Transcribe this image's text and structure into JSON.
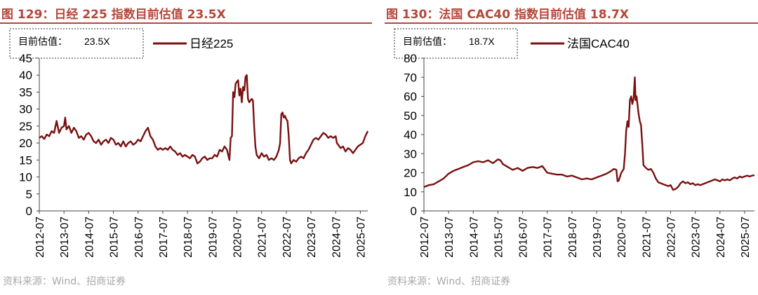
{
  "source_note": "资料来源：Wind、招商证券",
  "colors": {
    "title": "#b5473a",
    "series": "#7a1010",
    "rule": "#b5473a"
  },
  "chart_data": [
    {
      "type": "line",
      "figure_title": "图 129：日经 225 指数目前估值 23.5X",
      "annotation_label": "目前估值：",
      "annotation_value": "23.5X",
      "legend_position": "top",
      "grid": false,
      "ylim": [
        0,
        45
      ],
      "yticks": [
        0,
        5,
        10,
        15,
        20,
        25,
        30,
        35,
        40,
        45
      ],
      "xlim": [
        2012.5,
        2025.8
      ],
      "xticks": [
        "2012-07",
        "2013-07",
        "2014-07",
        "2015-07",
        "2016-07",
        "2017-07",
        "2018-07",
        "2019-07",
        "2020-07",
        "2021-07",
        "2022-07",
        "2023-07",
        "2024-07",
        "2025-07"
      ],
      "series": [
        {
          "name": "日经225",
          "points": [
            [
              2012.5,
              21.5
            ],
            [
              2012.6,
              22.0
            ],
            [
              2012.7,
              21.2
            ],
            [
              2012.8,
              22.5
            ],
            [
              2012.9,
              22.0
            ],
            [
              2013.0,
              23.5
            ],
            [
              2013.1,
              23.0
            ],
            [
              2013.2,
              26.5
            ],
            [
              2013.3,
              23.0
            ],
            [
              2013.4,
              24.5
            ],
            [
              2013.5,
              25.0
            ],
            [
              2013.55,
              27.5
            ],
            [
              2013.6,
              24.0
            ],
            [
              2013.7,
              25.0
            ],
            [
              2013.8,
              23.0
            ],
            [
              2013.9,
              24.5
            ],
            [
              2014.0,
              23.5
            ],
            [
              2014.1,
              21.5
            ],
            [
              2014.2,
              22.0
            ],
            [
              2014.3,
              21.0
            ],
            [
              2014.4,
              22.5
            ],
            [
              2014.5,
              23.0
            ],
            [
              2014.6,
              22.0
            ],
            [
              2014.7,
              20.5
            ],
            [
              2014.8,
              20.0
            ],
            [
              2014.9,
              21.0
            ],
            [
              2015.0,
              19.5
            ],
            [
              2015.1,
              20.5
            ],
            [
              2015.2,
              21.0
            ],
            [
              2015.3,
              20.0
            ],
            [
              2015.4,
              21.5
            ],
            [
              2015.5,
              21.0
            ],
            [
              2015.6,
              19.5
            ],
            [
              2015.7,
              20.0
            ],
            [
              2015.8,
              19.0
            ],
            [
              2015.9,
              20.5
            ],
            [
              2016.0,
              19.0
            ],
            [
              2016.1,
              20.0
            ],
            [
              2016.2,
              20.5
            ],
            [
              2016.3,
              19.5
            ],
            [
              2016.4,
              20.0
            ],
            [
              2016.5,
              21.0
            ],
            [
              2016.6,
              20.5
            ],
            [
              2016.7,
              22.0
            ],
            [
              2016.8,
              23.5
            ],
            [
              2016.9,
              24.5
            ],
            [
              2017.0,
              22.0
            ],
            [
              2017.1,
              21.0
            ],
            [
              2017.2,
              19.0
            ],
            [
              2017.3,
              18.0
            ],
            [
              2017.4,
              18.5
            ],
            [
              2017.5,
              18.0
            ],
            [
              2017.6,
              18.5
            ],
            [
              2017.7,
              18.0
            ],
            [
              2017.8,
              19.0
            ],
            [
              2017.9,
              18.0
            ],
            [
              2018.0,
              17.5
            ],
            [
              2018.1,
              16.5
            ],
            [
              2018.2,
              17.0
            ],
            [
              2018.3,
              16.0
            ],
            [
              2018.4,
              16.5
            ],
            [
              2018.5,
              16.0
            ],
            [
              2018.6,
              15.5
            ],
            [
              2018.7,
              16.5
            ],
            [
              2018.8,
              16.0
            ],
            [
              2018.9,
              14.0
            ],
            [
              2019.0,
              14.5
            ],
            [
              2019.1,
              15.5
            ],
            [
              2019.2,
              16.0
            ],
            [
              2019.3,
              15.0
            ],
            [
              2019.4,
              15.5
            ],
            [
              2019.5,
              15.5
            ],
            [
              2019.6,
              16.5
            ],
            [
              2019.7,
              16.0
            ],
            [
              2019.8,
              18.0
            ],
            [
              2019.9,
              17.5
            ],
            [
              2020.0,
              19.0
            ],
            [
              2020.1,
              18.0
            ],
            [
              2020.2,
              15.0
            ],
            [
              2020.25,
              21.5
            ],
            [
              2020.3,
              22.0
            ],
            [
              2020.35,
              35.0
            ],
            [
              2020.4,
              33.5
            ],
            [
              2020.45,
              37.5
            ],
            [
              2020.5,
              38.0
            ],
            [
              2020.55,
              38.5
            ],
            [
              2020.6,
              34.0
            ],
            [
              2020.65,
              36.0
            ],
            [
              2020.7,
              32.0
            ],
            [
              2020.75,
              36.5
            ],
            [
              2020.8,
              35.5
            ],
            [
              2020.85,
              39.5
            ],
            [
              2020.9,
              40.0
            ],
            [
              2020.95,
              33.0
            ],
            [
              2021.0,
              32.0
            ],
            [
              2021.1,
              33.0
            ],
            [
              2021.15,
              32.5
            ],
            [
              2021.2,
              25.0
            ],
            [
              2021.25,
              19.0
            ],
            [
              2021.3,
              16.5
            ],
            [
              2021.4,
              15.5
            ],
            [
              2021.5,
              17.0
            ],
            [
              2021.6,
              16.0
            ],
            [
              2021.7,
              16.5
            ],
            [
              2021.8,
              15.0
            ],
            [
              2021.9,
              15.5
            ],
            [
              2022.0,
              15.0
            ],
            [
              2022.1,
              16.0
            ],
            [
              2022.2,
              18.0
            ],
            [
              2022.25,
              20.0
            ],
            [
              2022.3,
              28.5
            ],
            [
              2022.35,
              29.0
            ],
            [
              2022.4,
              27.5
            ],
            [
              2022.45,
              28.0
            ],
            [
              2022.5,
              27.0
            ],
            [
              2022.55,
              26.5
            ],
            [
              2022.6,
              22.0
            ],
            [
              2022.65,
              15.0
            ],
            [
              2022.7,
              14.0
            ],
            [
              2022.8,
              15.0
            ],
            [
              2022.9,
              14.5
            ],
            [
              2023.0,
              15.5
            ],
            [
              2023.1,
              16.0
            ],
            [
              2023.2,
              15.5
            ],
            [
              2023.3,
              17.0
            ],
            [
              2023.4,
              18.0
            ],
            [
              2023.5,
              19.5
            ],
            [
              2023.6,
              21.0
            ],
            [
              2023.7,
              21.5
            ],
            [
              2023.8,
              21.0
            ],
            [
              2023.9,
              22.0
            ],
            [
              2024.0,
              23.0
            ],
            [
              2024.1,
              22.5
            ],
            [
              2024.2,
              21.5
            ],
            [
              2024.3,
              22.0
            ],
            [
              2024.4,
              21.5
            ],
            [
              2024.5,
              22.0
            ],
            [
              2024.55,
              20.0
            ],
            [
              2024.6,
              19.5
            ],
            [
              2024.7,
              18.5
            ],
            [
              2024.8,
              19.0
            ],
            [
              2024.9,
              17.5
            ],
            [
              2025.0,
              18.5
            ],
            [
              2025.1,
              18.0
            ],
            [
              2025.2,
              17.0
            ],
            [
              2025.3,
              18.0
            ],
            [
              2025.4,
              19.0
            ],
            [
              2025.5,
              19.5
            ],
            [
              2025.6,
              20.0
            ],
            [
              2025.7,
              22.0
            ],
            [
              2025.8,
              23.5
            ]
          ]
        }
      ]
    },
    {
      "type": "line",
      "figure_title": "图 130：法国 CAC40 指数目前估值 18.7X",
      "annotation_label": "目前估值：",
      "annotation_value": "18.7X",
      "legend_position": "top",
      "grid": false,
      "ylim": [
        0,
        80
      ],
      "yticks": [
        0,
        10,
        20,
        30,
        40,
        50,
        60,
        70,
        80
      ],
      "xlim": [
        2012.5,
        2025.9
      ],
      "xticks": [
        "2012-07",
        "2013-07",
        "2014-07",
        "2015-07",
        "2016-07",
        "2017-07",
        "2018-07",
        "2019-07",
        "2020-07",
        "2021-07",
        "2022-07",
        "2023-07",
        "2024-07",
        "2025-07"
      ],
      "series": [
        {
          "name": "法国CAC40",
          "points": [
            [
              2012.5,
              12.5
            ],
            [
              2012.7,
              13.5
            ],
            [
              2012.9,
              14.0
            ],
            [
              2013.1,
              15.5
            ],
            [
              2013.3,
              17.0
            ],
            [
              2013.5,
              19.5
            ],
            [
              2013.7,
              21.0
            ],
            [
              2013.9,
              22.0
            ],
            [
              2014.1,
              23.0
            ],
            [
              2014.3,
              24.0
            ],
            [
              2014.5,
              25.5
            ],
            [
              2014.7,
              26.0
            ],
            [
              2014.9,
              25.5
            ],
            [
              2015.1,
              26.5
            ],
            [
              2015.3,
              25.0
            ],
            [
              2015.5,
              27.0
            ],
            [
              2015.6,
              26.5
            ],
            [
              2015.7,
              24.5
            ],
            [
              2015.9,
              23.0
            ],
            [
              2016.1,
              21.5
            ],
            [
              2016.3,
              22.5
            ],
            [
              2016.5,
              21.0
            ],
            [
              2016.7,
              22.5
            ],
            [
              2016.9,
              23.0
            ],
            [
              2017.1,
              22.5
            ],
            [
              2017.3,
              23.5
            ],
            [
              2017.5,
              20.0
            ],
            [
              2017.7,
              19.5
            ],
            [
              2017.9,
              19.0
            ],
            [
              2018.1,
              19.0
            ],
            [
              2018.3,
              18.0
            ],
            [
              2018.5,
              18.5
            ],
            [
              2018.7,
              17.5
            ],
            [
              2018.9,
              16.5
            ],
            [
              2019.1,
              17.0
            ],
            [
              2019.3,
              16.5
            ],
            [
              2019.5,
              17.5
            ],
            [
              2019.7,
              18.5
            ],
            [
              2019.9,
              19.5
            ],
            [
              2020.1,
              21.0
            ],
            [
              2020.2,
              22.0
            ],
            [
              2020.3,
              21.5
            ],
            [
              2020.35,
              15.5
            ],
            [
              2020.4,
              16.0
            ],
            [
              2020.5,
              20.0
            ],
            [
              2020.6,
              22.0
            ],
            [
              2020.65,
              30.0
            ],
            [
              2020.7,
              42.0
            ],
            [
              2020.75,
              47.0
            ],
            [
              2020.8,
              44.0
            ],
            [
              2020.85,
              58.0
            ],
            [
              2020.9,
              60.0
            ],
            [
              2020.95,
              56.0
            ],
            [
              2021.0,
              59.0
            ],
            [
              2021.05,
              70.0
            ],
            [
              2021.08,
              58.0
            ],
            [
              2021.12,
              60.0
            ],
            [
              2021.2,
              51.0
            ],
            [
              2021.25,
              47.0
            ],
            [
              2021.3,
              45.0
            ],
            [
              2021.35,
              35.0
            ],
            [
              2021.4,
              24.0
            ],
            [
              2021.5,
              22.5
            ],
            [
              2021.6,
              21.5
            ],
            [
              2021.7,
              22.0
            ],
            [
              2021.8,
              20.0
            ],
            [
              2021.9,
              17.0
            ],
            [
              2022.0,
              15.0
            ],
            [
              2022.1,
              14.5
            ],
            [
              2022.2,
              14.0
            ],
            [
              2022.3,
              13.5
            ],
            [
              2022.4,
              13.0
            ],
            [
              2022.5,
              13.5
            ],
            [
              2022.6,
              11.0
            ],
            [
              2022.7,
              11.5
            ],
            [
              2022.8,
              12.5
            ],
            [
              2022.9,
              14.5
            ],
            [
              2023.0,
              15.5
            ],
            [
              2023.1,
              14.5
            ],
            [
              2023.2,
              15.0
            ],
            [
              2023.3,
              14.0
            ],
            [
              2023.4,
              14.5
            ],
            [
              2023.5,
              13.5
            ],
            [
              2023.6,
              14.0
            ],
            [
              2023.7,
              13.5
            ],
            [
              2023.8,
              14.0
            ],
            [
              2023.9,
              14.5
            ],
            [
              2024.0,
              15.0
            ],
            [
              2024.1,
              15.5
            ],
            [
              2024.2,
              16.0
            ],
            [
              2024.3,
              16.5
            ],
            [
              2024.4,
              16.0
            ],
            [
              2024.5,
              15.5
            ],
            [
              2024.6,
              16.5
            ],
            [
              2024.7,
              16.0
            ],
            [
              2024.8,
              16.5
            ],
            [
              2024.9,
              16.0
            ],
            [
              2025.0,
              17.0
            ],
            [
              2025.1,
              17.5
            ],
            [
              2025.2,
              17.0
            ],
            [
              2025.3,
              18.0
            ],
            [
              2025.4,
              17.5
            ],
            [
              2025.5,
              18.0
            ],
            [
              2025.6,
              18.5
            ],
            [
              2025.7,
              18.0
            ],
            [
              2025.8,
              18.5
            ],
            [
              2025.9,
              18.7
            ]
          ]
        }
      ]
    }
  ]
}
